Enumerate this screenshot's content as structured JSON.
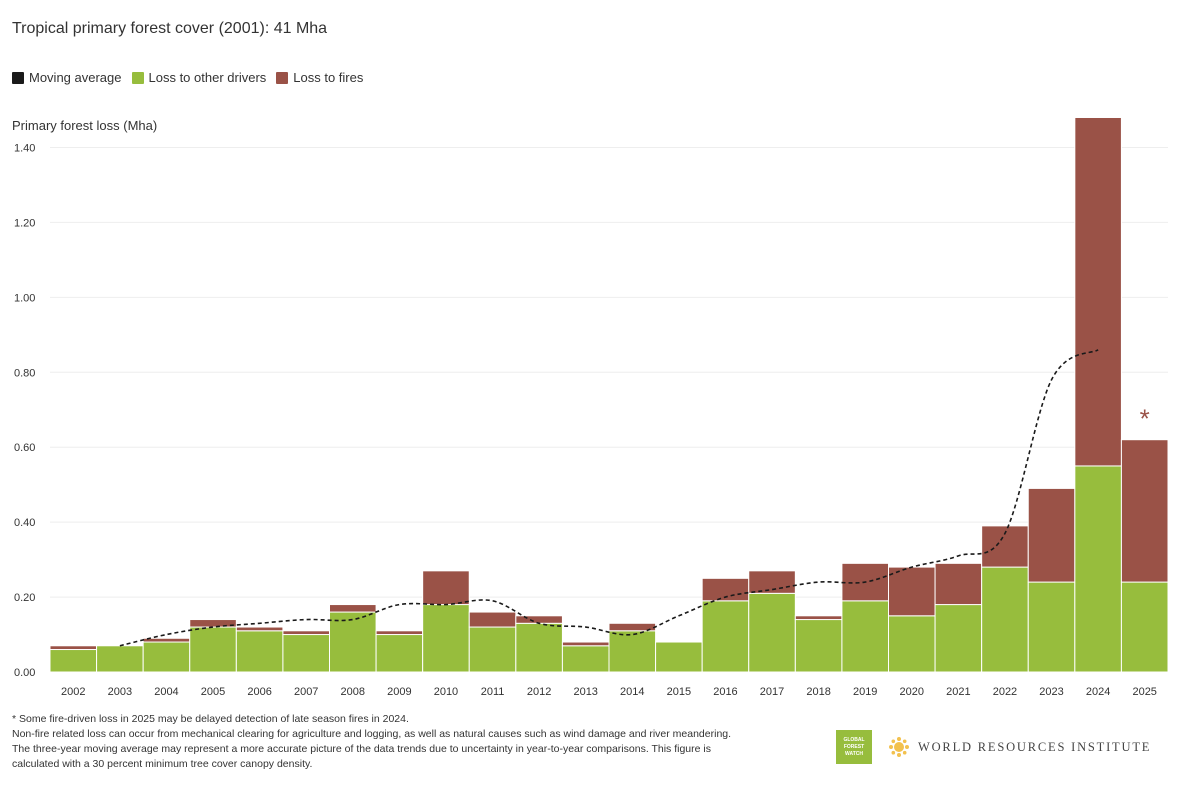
{
  "title": "Tropical primary forest cover (2001): 41 Mha",
  "legend": [
    {
      "label": "Moving average",
      "color": "#1a1a1a"
    },
    {
      "label": "Loss to other drivers",
      "color": "#97bd3d"
    },
    {
      "label": "Loss to fires",
      "color": "#9a5247"
    }
  ],
  "footnotes": [
    "* Some fire-driven loss in 2025 may be delayed detection of late season fires in 2024.",
    "Non-fire related loss can occur from mechanical clearing for agriculture and logging, as well as natural causes such as wind damage and river meandering.",
    "The three-year moving average may represent a more accurate picture of the data trends due to uncertainty in year-to-year comparisons. This figure is",
    "calculated with a 30 percent minimum tree cover canopy density."
  ],
  "logos": {
    "gfw_lines": [
      "GLOBAL",
      "FOREST",
      "WATCH"
    ],
    "wri_text": "WORLD RESOURCES INSTITUTE"
  },
  "chart_data": {
    "type": "bar",
    "stacked": true,
    "title": "Tropical primary forest cover (2001): 41 Mha",
    "ylabel": "Primary forest loss (Mha)",
    "xlabel": "",
    "ylim": [
      0,
      1.5
    ],
    "yticks": [
      0,
      0.2,
      0.4,
      0.6,
      0.8,
      1.0,
      1.2,
      1.4
    ],
    "ytick_labels": [
      "0.00",
      "0.20",
      "0.40",
      "0.60",
      "0.80",
      "1.00",
      "1.20",
      "1.40"
    ],
    "grid": true,
    "legend_position": "top-left",
    "categories": [
      "2002",
      "2003",
      "2004",
      "2005",
      "2006",
      "2007",
      "2008",
      "2009",
      "2010",
      "2011",
      "2012",
      "2013",
      "2014",
      "2015",
      "2016",
      "2017",
      "2018",
      "2019",
      "2020",
      "2021",
      "2022",
      "2023",
      "2024",
      "2025"
    ],
    "series": [
      {
        "name": "Loss to other drivers",
        "color": "#97bd3d",
        "values": [
          0.06,
          0.07,
          0.08,
          0.12,
          0.11,
          0.1,
          0.16,
          0.1,
          0.18,
          0.12,
          0.13,
          0.07,
          0.11,
          0.08,
          0.19,
          0.21,
          0.14,
          0.19,
          0.15,
          0.18,
          0.28,
          0.24,
          0.55,
          0.24
        ]
      },
      {
        "name": "Loss to fires",
        "color": "#9a5247",
        "values": [
          0.01,
          0.0,
          0.01,
          0.02,
          0.01,
          0.01,
          0.02,
          0.01,
          0.09,
          0.04,
          0.02,
          0.01,
          0.02,
          0.0,
          0.06,
          0.06,
          0.01,
          0.1,
          0.13,
          0.11,
          0.11,
          0.25,
          0.93,
          0.38
        ]
      }
    ],
    "moving_average": {
      "name": "Moving average",
      "color": "#1a1a1a",
      "categories": [
        "2003",
        "2004",
        "2005",
        "2006",
        "2007",
        "2008",
        "2009",
        "2010",
        "2011",
        "2012",
        "2013",
        "2014",
        "2015",
        "2016",
        "2017",
        "2018",
        "2019",
        "2020",
        "2021",
        "2022",
        "2023",
        "2024"
      ],
      "values": [
        0.07,
        0.1,
        0.12,
        0.13,
        0.14,
        0.14,
        0.18,
        0.18,
        0.19,
        0.13,
        0.12,
        0.1,
        0.15,
        0.2,
        0.22,
        0.24,
        0.24,
        0.28,
        0.31,
        0.37,
        0.78,
        0.86
      ]
    },
    "annotations": [
      {
        "category": "2025",
        "text": "*",
        "color": "#9a5247"
      }
    ]
  }
}
